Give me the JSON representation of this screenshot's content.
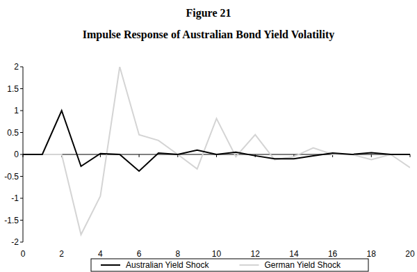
{
  "chart_data": {
    "type": "line",
    "title": "Figure 21",
    "subtitle": "Impulse Response of Australian Bond Yield Volatility",
    "x": [
      0,
      1,
      2,
      3,
      4,
      5,
      6,
      7,
      8,
      9,
      10,
      11,
      12,
      13,
      14,
      15,
      16,
      17,
      18,
      19,
      20
    ],
    "series": [
      {
        "name": "Australian Yield Shock",
        "color": "#000000",
        "values": [
          0,
          0,
          1,
          -0.27,
          0.02,
          0,
          -0.38,
          0.03,
          0,
          0.1,
          0,
          0.05,
          -0.03,
          -0.1,
          -0.1,
          -0.03,
          0.03,
          0,
          0.04,
          0,
          0
        ]
      },
      {
        "name": "German Yield Shock",
        "color": "#d4d4d4",
        "values": [
          0,
          0,
          0,
          -1.83,
          -0.95,
          2.0,
          0.45,
          0.32,
          0,
          -0.33,
          0.82,
          -0.05,
          0.45,
          -0.12,
          -0.05,
          0.15,
          0,
          0,
          -0.12,
          0,
          -0.3
        ]
      }
    ],
    "xlim": [
      0,
      20
    ],
    "xticks": [
      0,
      2,
      4,
      6,
      8,
      10,
      12,
      14,
      16,
      18,
      20
    ],
    "ylim": [
      -2,
      2
    ],
    "yticks": [
      -2,
      -1.5,
      -1,
      -0.5,
      0,
      0.5,
      1,
      1.5,
      2
    ],
    "grid": false,
    "legend": "bottom"
  }
}
